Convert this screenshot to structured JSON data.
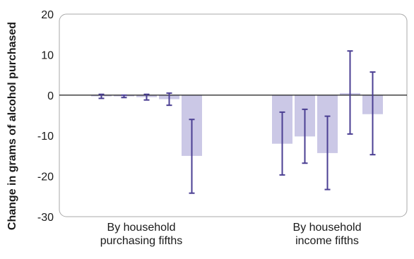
{
  "chart_data": {
    "type": "bar",
    "ylabel": "Change in grams of alcohol purchased",
    "ylim": [
      -30,
      20
    ],
    "yticks": [
      20,
      10,
      0,
      -10,
      -20,
      -30
    ],
    "grid": false,
    "groups": [
      {
        "label_lines": [
          "By household",
          "purchasing fifths"
        ],
        "bars": [
          {
            "value": -0.3,
            "ci": [
              -0.8,
              0.2
            ]
          },
          {
            "value": -0.3,
            "ci": [
              -0.6,
              0.0
            ]
          },
          {
            "value": -0.5,
            "ci": [
              -1.2,
              0.2
            ]
          },
          {
            "value": -1.0,
            "ci": [
              -2.5,
              0.5
            ]
          },
          {
            "value": -15.0,
            "ci": [
              -24.2,
              -6.0
            ]
          }
        ]
      },
      {
        "label_lines": [
          "By household",
          "income fifths"
        ],
        "bars": [
          {
            "value": -12.0,
            "ci": [
              -19.7,
              -4.2
            ]
          },
          {
            "value": -10.2,
            "ci": [
              -16.8,
              -3.5
            ]
          },
          {
            "value": -14.3,
            "ci": [
              -23.3,
              -5.2
            ]
          },
          {
            "value": 0.5,
            "ci": [
              -9.6,
              10.9
            ]
          },
          {
            "value": -4.7,
            "ci": [
              -14.7,
              5.7
            ]
          }
        ]
      }
    ],
    "colors": {
      "bar": "#cbc8e6",
      "error": "#4b3f93",
      "zero_line": "#000000",
      "frame": "#a9a9a9"
    }
  }
}
